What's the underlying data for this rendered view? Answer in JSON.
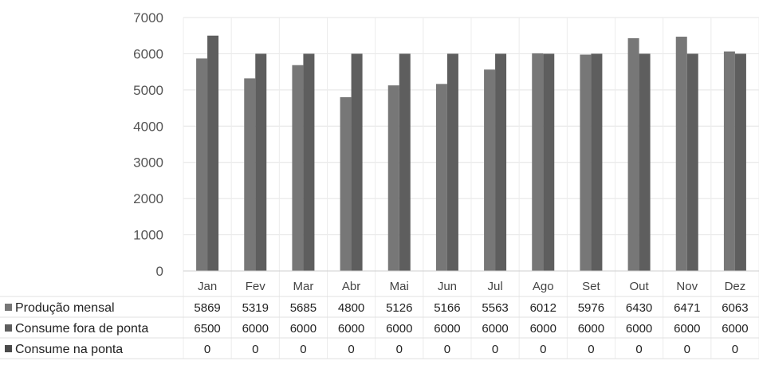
{
  "chart_data": {
    "type": "bar",
    "categories": [
      "Jan",
      "Fev",
      "Mar",
      "Abr",
      "Mai",
      "Jun",
      "Jul",
      "Ago",
      "Set",
      "Out",
      "Nov",
      "Dez"
    ],
    "series": [
      {
        "name": "Produção mensal",
        "values": [
          5869,
          5319,
          5685,
          4800,
          5126,
          5166,
          5563,
          6012,
          5976,
          6430,
          6471,
          6063
        ],
        "color": "#777777"
      },
      {
        "name": "Consume fora de ponta",
        "values": [
          6500,
          6000,
          6000,
          6000,
          6000,
          6000,
          6000,
          6000,
          6000,
          6000,
          6000,
          6000
        ],
        "color": "#5e5e5e"
      },
      {
        "name": "Consume na ponta",
        "values": [
          0,
          0,
          0,
          0,
          0,
          0,
          0,
          0,
          0,
          0,
          0,
          0
        ],
        "color": "#4a4a4a"
      }
    ],
    "ylim": [
      0,
      7000
    ],
    "yticks": [
      0,
      1000,
      2000,
      3000,
      4000,
      5000,
      6000,
      7000
    ],
    "grid": true,
    "legend": "data-table-below",
    "title": "",
    "xlabel": "",
    "ylabel": ""
  }
}
